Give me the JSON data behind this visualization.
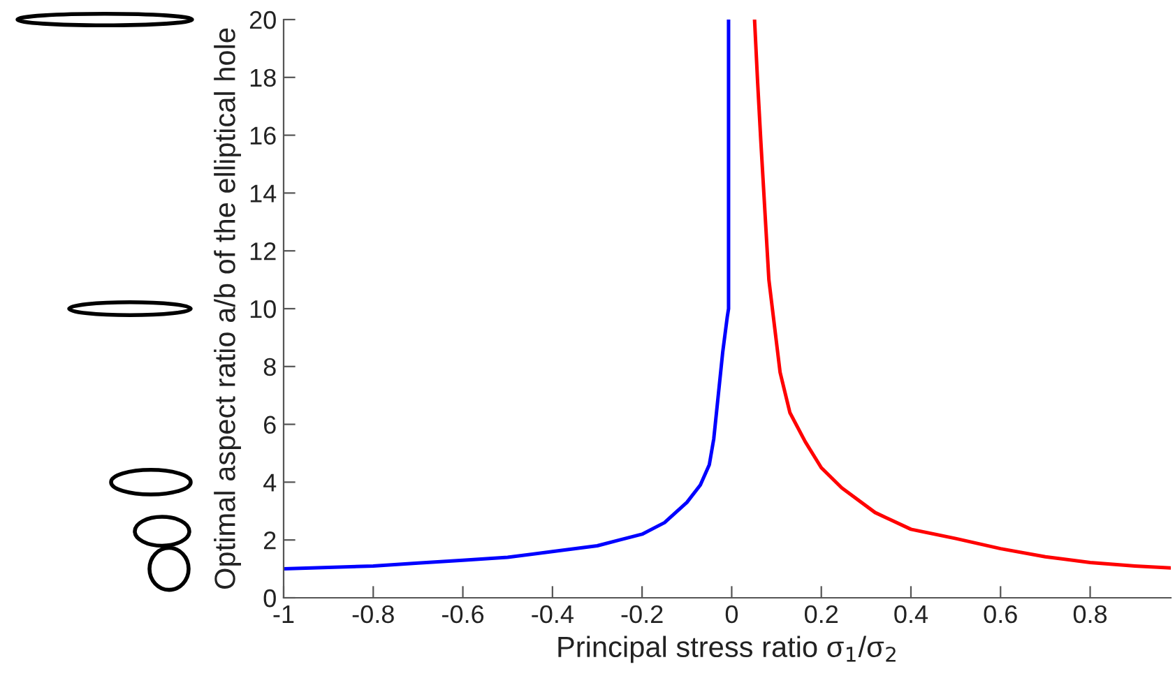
{
  "chart_data": {
    "type": "line",
    "xlabel": "Principal stress ratio σ$_{1}$/σ$_{2}$",
    "ylabel": "Optimal aspect ratio a/b of the elliptical hole",
    "series": [
      {
        "color": "#0000ff",
        "x": [
          -1,
          -0.9,
          -0.8,
          -0.7,
          -0.6,
          -0.5,
          -0.4,
          -0.3,
          -0.25,
          -0.2,
          -0.15,
          -0.1,
          -0.07,
          -0.05,
          -0.04,
          -0.03,
          -0.02,
          -0.01,
          -0.007,
          -0.007
        ],
        "values": [
          1.0,
          1.05,
          1.1,
          1.2,
          1.3,
          1.4,
          1.6,
          1.8,
          2.0,
          2.2,
          2.6,
          3.3,
          3.9,
          4.6,
          5.5,
          7.0,
          8.5,
          9.7,
          10.0,
          20
        ]
      },
      {
        "color": "#ff0000",
        "x": [
          0.051,
          0.058,
          0.065,
          0.083,
          0.108,
          0.13,
          0.164,
          0.2,
          0.246,
          0.32,
          0.4,
          0.5,
          0.6,
          0.7,
          0.8,
          0.9,
          0.98
        ],
        "values": [
          20,
          17.8,
          15.8,
          11.0,
          7.8,
          6.4,
          5.4,
          4.5,
          3.8,
          2.95,
          2.37,
          2.05,
          1.7,
          1.42,
          1.22,
          1.1,
          1.03
        ]
      }
    ],
    "xlim": [
      -1,
      0.98
    ],
    "ylim": [
      0,
      20
    ],
    "xticks": [
      -1,
      -0.8,
      -0.6,
      -0.4,
      -0.2,
      0,
      0.2,
      0.4,
      0.6,
      0.8
    ],
    "yticks": [
      0,
      2,
      4,
      6,
      8,
      10,
      12,
      14,
      16,
      18,
      20
    ],
    "line_style": "solid",
    "marker": "none",
    "grid": false,
    "legend": false
  }
}
